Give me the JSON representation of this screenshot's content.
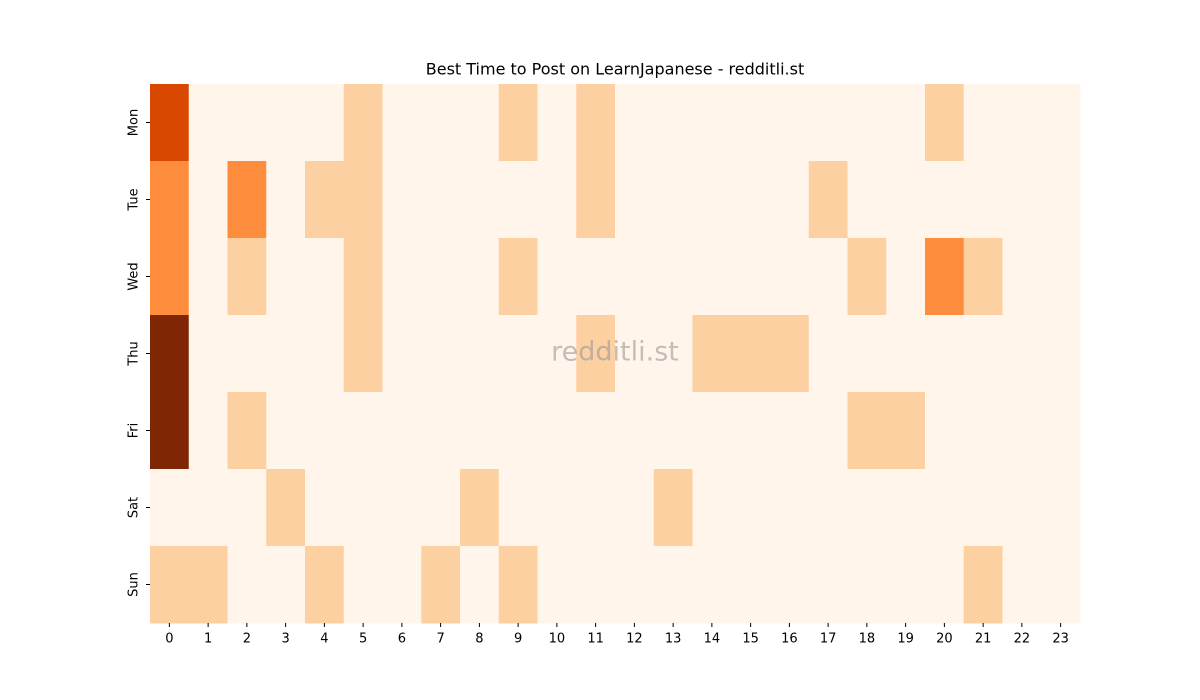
{
  "chart_data": {
    "type": "heatmap",
    "title": "Best Time to Post on LearnJapanese - redditli.st",
    "watermark": "redditli.st",
    "x": [
      0,
      1,
      2,
      3,
      4,
      5,
      6,
      7,
      8,
      9,
      10,
      11,
      12,
      13,
      14,
      15,
      16,
      17,
      18,
      19,
      20,
      21,
      22,
      23
    ],
    "y": [
      "Mon",
      "Tue",
      "Wed",
      "Thu",
      "Fri",
      "Sat",
      "Sun"
    ],
    "values": [
      [
        3,
        0,
        0,
        0,
        0,
        1,
        0,
        0,
        0,
        1,
        0,
        1,
        0,
        0,
        0,
        0,
        0,
        0,
        0,
        0,
        1,
        0,
        0,
        0
      ],
      [
        2,
        0,
        2,
        0,
        1,
        1,
        0,
        0,
        0,
        0,
        0,
        1,
        0,
        0,
        0,
        0,
        0,
        1,
        0,
        0,
        0,
        0,
        0,
        0
      ],
      [
        2,
        0,
        1,
        0,
        0,
        1,
        0,
        0,
        0,
        1,
        0,
        0,
        0,
        0,
        0,
        0,
        0,
        0,
        1,
        0,
        2,
        1,
        0,
        0
      ],
      [
        4,
        0,
        0,
        0,
        0,
        1,
        0,
        0,
        0,
        0,
        0,
        1,
        0,
        0,
        1,
        1,
        1,
        0,
        0,
        0,
        0,
        0,
        0,
        0
      ],
      [
        4,
        0,
        1,
        0,
        0,
        0,
        0,
        0,
        0,
        0,
        0,
        0,
        0,
        0,
        0,
        0,
        0,
        0,
        1,
        1,
        0,
        0,
        0,
        0
      ],
      [
        0,
        0,
        0,
        1,
        0,
        0,
        0,
        0,
        1,
        0,
        0,
        0,
        0,
        1,
        0,
        0,
        0,
        0,
        0,
        0,
        0,
        0,
        0,
        0
      ],
      [
        1,
        1,
        0,
        0,
        1,
        0,
        0,
        1,
        0,
        1,
        0,
        0,
        0,
        0,
        0,
        0,
        0,
        0,
        0,
        0,
        0,
        1,
        0,
        0
      ]
    ],
    "zlim": [
      0,
      4
    ],
    "color_scale": [
      "#fff5eb",
      "#fdd0a2",
      "#fd8d3c",
      "#d94801",
      "#7f2704"
    ]
  }
}
